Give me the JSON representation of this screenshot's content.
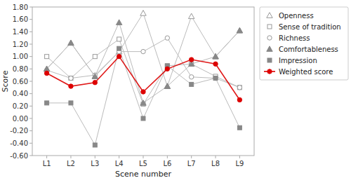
{
  "chart_data": {
    "type": "line",
    "x_label": "Scene number",
    "y_label": "Score",
    "categories": [
      "L1",
      "L2",
      "L3",
      "L4",
      "L5",
      "L6",
      "L7",
      "L8",
      "L9"
    ],
    "series": [
      {
        "name": "Openness",
        "color": "#bbbbbb",
        "marker": "open-triangle",
        "values": [
          0.8,
          1.22,
          0.68,
          1.08,
          1.7,
          0.52,
          1.65,
          1.0,
          1.42
        ]
      },
      {
        "name": "Sense of tradition",
        "color": "#bbbbbb",
        "marker": "open-square",
        "values": [
          1.0,
          0.65,
          1.0,
          1.28,
          0.23,
          0.85,
          0.88,
          0.68,
          0.5
        ]
      },
      {
        "name": "Richness",
        "color": "#bbbbbb",
        "marker": "open-circle",
        "values": [
          0.78,
          0.65,
          0.7,
          1.08,
          1.08,
          1.3,
          0.67,
          0.65,
          0.5
        ]
      },
      {
        "name": "Comfortableness",
        "color": "#bbbbbb",
        "marker": "filled-triangle",
        "values": [
          0.8,
          1.22,
          0.68,
          1.55,
          0.25,
          0.52,
          0.88,
          1.0,
          1.42
        ]
      },
      {
        "name": "Impression",
        "color": "#bbbbbb",
        "marker": "filled-square",
        "values": [
          0.25,
          0.25,
          -0.43,
          1.13,
          0.0,
          0.85,
          0.55,
          0.65,
          -0.15
        ]
      },
      {
        "name": "Weighted score",
        "color": "#dd0000",
        "marker": "filled-circle",
        "values": [
          0.73,
          0.52,
          0.58,
          1.0,
          0.43,
          0.8,
          0.95,
          0.88,
          0.3
        ]
      }
    ],
    "ylim": [
      -0.6,
      1.8
    ],
    "yticks": [
      {
        "value": -0.6,
        "label": "-0.60"
      },
      {
        "value": -0.4,
        "label": "-0.40"
      },
      {
        "value": -0.2,
        "label": "-0.20"
      },
      {
        "value": 0,
        "label": "0.00"
      },
      {
        "value": 0.2,
        "label": "0.20"
      },
      {
        "value": 0.4,
        "label": "0.40"
      },
      {
        "value": 0.6,
        "label": "0.60"
      },
      {
        "value": 0.8,
        "label": "0.80"
      },
      {
        "value": 1.0,
        "label": "1.00"
      },
      {
        "value": 1.2,
        "label": "1.20"
      },
      {
        "value": 1.4,
        "label": "1.40"
      },
      {
        "value": 1.6,
        "label": "1.60"
      },
      {
        "value": 1.8,
        "label": "1.80"
      }
    ],
    "grid": false,
    "legend": "right"
  }
}
